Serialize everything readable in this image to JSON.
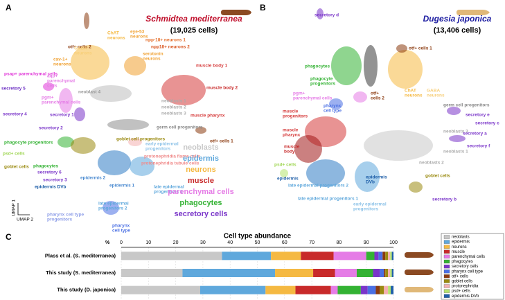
{
  "panel_letters": [
    "A",
    "B",
    "C"
  ],
  "umap_axes": [
    "UMAP 1",
    "UMAP 2"
  ],
  "panels": [
    {
      "species": "Schmidtea mediterranea",
      "species_color": "#c0102c",
      "cells": "(19,025 cells)",
      "labels": [
        {
          "text": [
            "otf+ cells 2"
          ],
          "color": "#8b3a0f"
        },
        {
          "text": [
            "eye-53",
            "neurons"
          ],
          "color": "#f0a030"
        },
        {
          "text": [
            "ChAT",
            "neurons"
          ],
          "color": "#f5b942"
        },
        {
          "text": [
            "npp-18+ neurons 1"
          ],
          "color": "#e56f2d"
        },
        {
          "text": [
            "npp18+ neurons 2"
          ],
          "color": "#d9561f"
        },
        {
          "text": [
            "serotonin",
            "neurons"
          ],
          "color": "#f0a030"
        },
        {
          "text": [
            "GABA",
            "neurons"
          ],
          "color": "#f7cf7a"
        },
        {
          "text": [
            "cav-1+",
            "neurons"
          ],
          "color": "#f0a030"
        },
        {
          "text": [
            "muscle body 1"
          ],
          "color": "#d63b3b"
        },
        {
          "text": [
            "muscle body 2"
          ],
          "color": "#c82a2a"
        },
        {
          "text": [
            "muscle pharynx"
          ],
          "color": "#d63b3b"
        },
        {
          "text": [
            "psap+ parenchymal cells"
          ],
          "color": "#e037d8"
        },
        {
          "text": [
            "aqp+",
            "parenchymal",
            "cells"
          ],
          "color": "#e57ce6"
        },
        {
          "text": [
            "secretory 5"
          ],
          "color": "#6a2cc2"
        },
        {
          "text": [
            "neoblast 4"
          ],
          "color": "#999999"
        },
        {
          "text": [
            "neoblasts 1"
          ],
          "color": "#aaaaaa"
        },
        {
          "text": [
            "neoblasts 2"
          ],
          "color": "#aaaaaa"
        },
        {
          "text": [
            "neoblasts 3"
          ],
          "color": "#aaaaaa"
        },
        {
          "text": [
            "pgm+",
            "parenchymal cells"
          ],
          "color": "#e57ce6"
        },
        {
          "text": [
            "secretory 4"
          ],
          "color": "#7a35c9"
        },
        {
          "text": [
            "secretory 1"
          ],
          "color": "#7a35c9"
        },
        {
          "text": [
            "secretory 2"
          ],
          "color": "#7a35c9"
        },
        {
          "text": [
            "germ cell progenitors"
          ],
          "color": "#888888"
        },
        {
          "text": [
            "goblet cell progenitors"
          ],
          "color": "#9a8a10"
        },
        {
          "text": [
            "phagocyte progenitors"
          ],
          "color": "#33b233"
        },
        {
          "text": [
            "otf+ cells 1"
          ],
          "color": "#8b3a0f"
        },
        {
          "text": [
            "psd+ cells"
          ],
          "color": "#9fd653"
        },
        {
          "text": [
            "early epidermal",
            "progenitors"
          ],
          "color": "#8ec3e8"
        },
        {
          "text": [
            "protonephridia flame cells"
          ],
          "color": "#f08a8a"
        },
        {
          "text": [
            "protonephridia tubule cells"
          ],
          "color": "#f08a8a"
        },
        {
          "text": [
            "goblet cells"
          ],
          "color": "#9a8a10"
        },
        {
          "text": [
            "phagocytes"
          ],
          "color": "#33b233"
        },
        {
          "text": [
            "secretory 6"
          ],
          "color": "#7a35c9"
        },
        {
          "text": [
            "secretory 3"
          ],
          "color": "#7a35c9"
        },
        {
          "text": [
            "epidermis DVb"
          ],
          "color": "#1f5fa8"
        },
        {
          "text": [
            "epidermis 2"
          ],
          "color": "#4a8ad0"
        },
        {
          "text": [
            "epidermis 1"
          ],
          "color": "#4a8ad0"
        },
        {
          "text": [
            "late epidermal",
            "progenitors 1"
          ],
          "color": "#5fa8dc"
        },
        {
          "text": [
            "late epidermal",
            "progenitors 2"
          ],
          "color": "#5fa8dc"
        },
        {
          "text": [
            "pharynx cell type",
            "progenitors"
          ],
          "color": "#8e9ee8"
        },
        {
          "text": [
            "pharynx",
            "cell type"
          ],
          "color": "#4a6fe3"
        }
      ]
    },
    {
      "species": "Dugesia japonica",
      "species_color": "#1a1aa0",
      "cells": "(13,406 cells)",
      "labels": [
        {
          "text": [
            "secretory d"
          ],
          "color": "#7a35c9"
        },
        {
          "text": [
            "otf+ cells 1"
          ],
          "color": "#8b3a0f"
        },
        {
          "text": [
            "phagocytes"
          ],
          "color": "#33b233"
        },
        {
          "text": [
            "phagocyte",
            "progenitors"
          ],
          "color": "#33b233"
        },
        {
          "text": [
            "pgm+",
            "parenchymal cells"
          ],
          "color": "#e57ce6"
        },
        {
          "text": [
            "otf+",
            "cells 2"
          ],
          "color": "#8b3a0f"
        },
        {
          "text": [
            "ChAT",
            "neurons"
          ],
          "color": "#f5b942"
        },
        {
          "text": [
            "GABA",
            "neurons"
          ],
          "color": "#f7cf7a"
        },
        {
          "text": [
            "germ cell progenitors"
          ],
          "color": "#888888"
        },
        {
          "text": [
            "pharynx",
            "cell type"
          ],
          "color": "#4a6fe3"
        },
        {
          "text": [
            "muscle",
            "progenitors"
          ],
          "color": "#d63b3b"
        },
        {
          "text": [
            "secretory e"
          ],
          "color": "#7a35c9"
        },
        {
          "text": [
            "secretory c"
          ],
          "color": "#7a35c9"
        },
        {
          "text": [
            "muscle",
            "pharynx"
          ],
          "color": "#d63b3b"
        },
        {
          "text": [
            "neoblasts 3"
          ],
          "color": "#aaaaaa"
        },
        {
          "text": [
            "secretory a"
          ],
          "color": "#7a35c9"
        },
        {
          "text": [
            "secretory f"
          ],
          "color": "#7a35c9"
        },
        {
          "text": [
            "muscle",
            "body"
          ],
          "color": "#c82a2a"
        },
        {
          "text": [
            "psd+ cells"
          ],
          "color": "#9fd653"
        },
        {
          "text": [
            "neoblasts 1"
          ],
          "color": "#aaaaaa"
        },
        {
          "text": [
            "neoblasts 2"
          ],
          "color": "#aaaaaa"
        },
        {
          "text": [
            "epidermis"
          ],
          "color": "#1f5fa8"
        },
        {
          "text": [
            "epidermis",
            "DVb"
          ],
          "color": "#1f5fa8"
        },
        {
          "text": [
            "goblet cells"
          ],
          "color": "#9a8a10"
        },
        {
          "text": [
            "late epidermal progenitors 2"
          ],
          "color": "#5fa8dc"
        },
        {
          "text": [
            "late epidermal progenitors 1"
          ],
          "color": "#5fa8dc"
        },
        {
          "text": [
            "early epidermal",
            "progenitors"
          ],
          "color": "#8ec3e8"
        },
        {
          "text": [
            "secretory b"
          ],
          "color": "#7a35c9"
        }
      ]
    }
  ],
  "legend_groups": [
    {
      "name": "neoblasts",
      "color": "#c8c8c8"
    },
    {
      "name": "epidermis",
      "color": "#5fa8dc"
    },
    {
      "name": "neurons",
      "color": "#f5b942"
    },
    {
      "name": "muscle",
      "color": "#c82a2a"
    },
    {
      "name": "parenchymal cells",
      "color": "#e57ce6"
    },
    {
      "name": "phagocytes",
      "color": "#33b233"
    },
    {
      "name": "secretory cells",
      "color": "#7a35c9"
    }
  ],
  "chart_data": {
    "type": "bar",
    "stacked": true,
    "orientation": "horizontal",
    "title": "Cell type abundance",
    "xlabel": "%",
    "categories": [
      "Plass et al. (S. mediterranea)",
      "This study (S. mediterranea)",
      "This study (D. japonica)"
    ],
    "xlim": [
      0,
      100
    ],
    "xticks": [
      0,
      10,
      20,
      30,
      40,
      50,
      60,
      70,
      80,
      90,
      100
    ],
    "grid": true,
    "series": [
      {
        "name": "neoblasts",
        "color": "#c8c8c8",
        "values": [
          37,
          22.5,
          29
        ]
      },
      {
        "name": "epidermis",
        "color": "#5fa8dc",
        "values": [
          18,
          34,
          24
        ]
      },
      {
        "name": "neurons",
        "color": "#f5b942",
        "values": [
          11,
          14,
          11
        ]
      },
      {
        "name": "muscle",
        "color": "#c82a2a",
        "values": [
          12,
          8,
          13
        ]
      },
      {
        "name": "parenchymal cells",
        "color": "#e57ce6",
        "values": [
          12,
          8,
          2.5
        ]
      },
      {
        "name": "phagocytes",
        "color": "#33b233",
        "values": [
          3,
          6,
          8.5
        ]
      },
      {
        "name": "secretory cells",
        "color": "#7a35c9",
        "values": [
          1.5,
          2.5,
          2.5
        ]
      },
      {
        "name": "pharynx cell type",
        "color": "#4a6fe3",
        "values": [
          1.5,
          1.5,
          3
        ]
      },
      {
        "name": "otf+ cells",
        "color": "#8b3a0f",
        "values": [
          1,
          0.5,
          1.5
        ]
      },
      {
        "name": "goblet cells",
        "color": "#9a8a10",
        "values": [
          1,
          1,
          1.5
        ]
      },
      {
        "name": "protonephridia",
        "color": "#f4b0b0",
        "values": [
          0.8,
          0.8,
          1.5
        ]
      },
      {
        "name": "psd+ cells",
        "color": "#b5e36e",
        "values": [
          0.6,
          0.6,
          1
        ]
      },
      {
        "name": "epidermis DVb",
        "color": "#1f5fa8",
        "values": [
          0.6,
          0.6,
          1
        ]
      }
    ]
  }
}
